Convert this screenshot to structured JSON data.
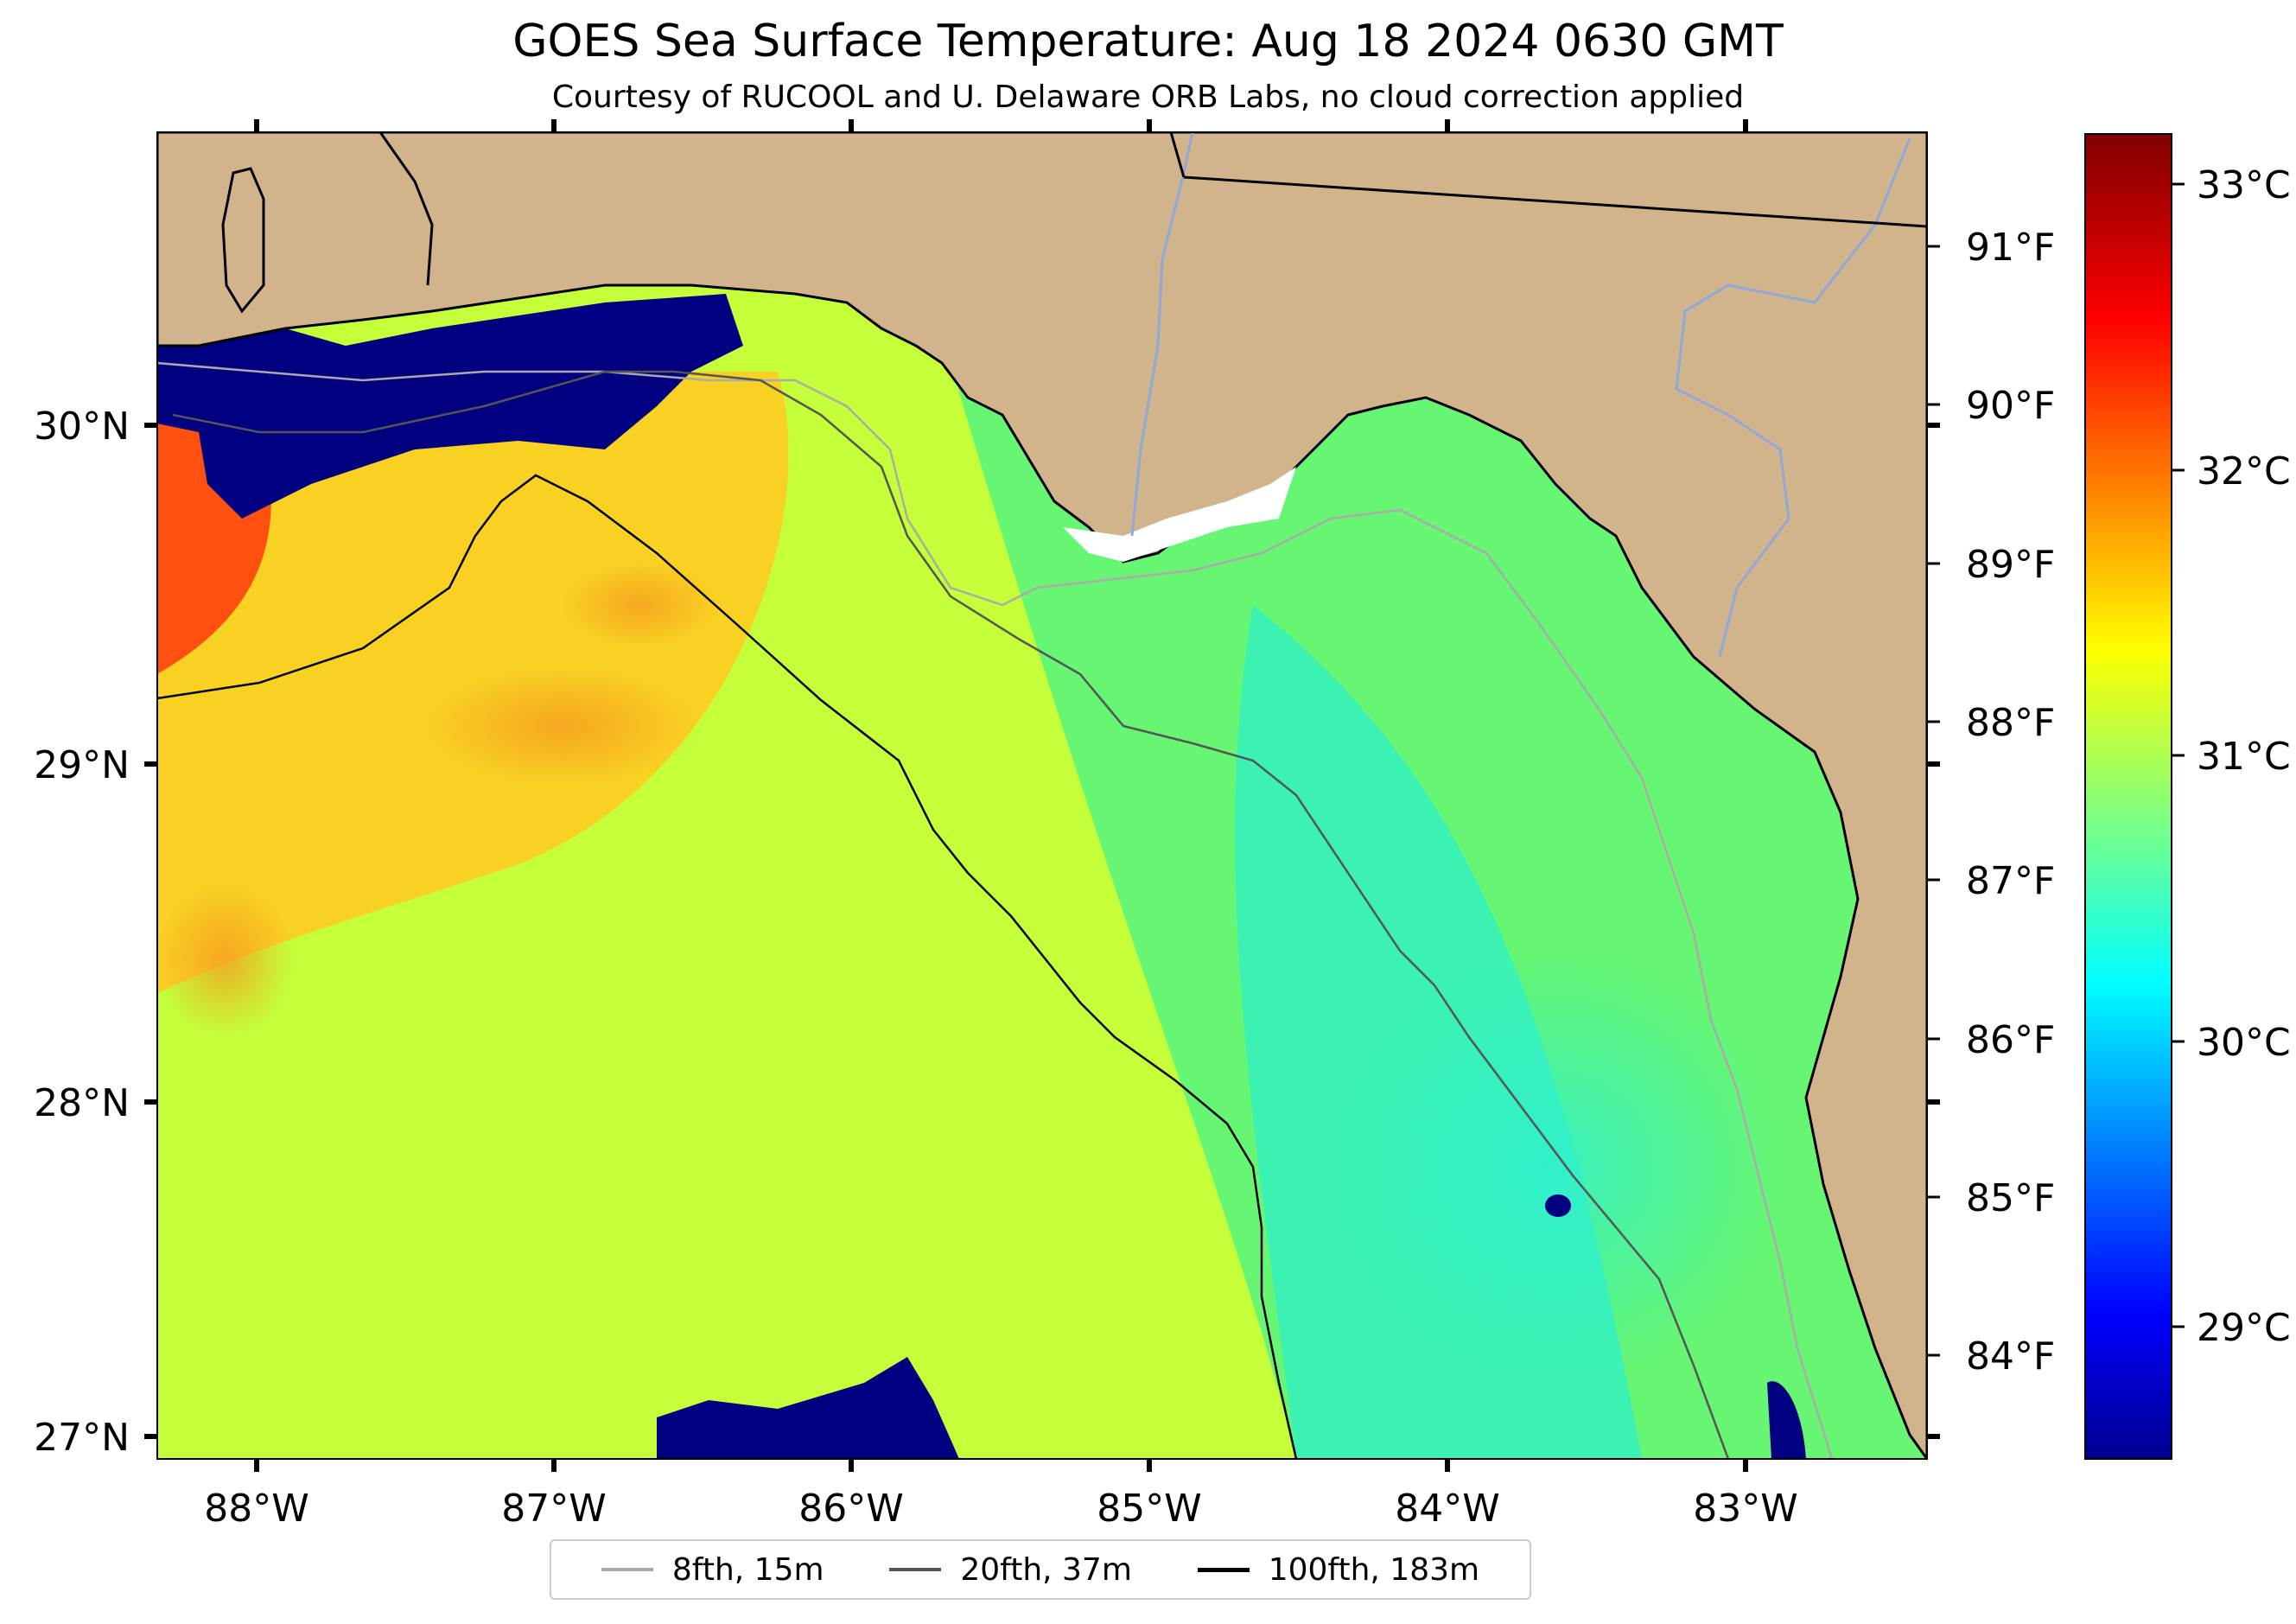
{
  "title": "GOES Sea Surface Temperature: Aug 18 2024 0630 GMT",
  "subtitle": "Courtesy of RUCOOL and U. Delaware ORB Labs, no cloud correction applied",
  "map": {
    "lon_ticks": [
      "88°W",
      "87°W",
      "86°W",
      "85°W",
      "84°W",
      "83°W"
    ],
    "lat_ticks": [
      "30°N",
      "29°N",
      "28°N",
      "27°N"
    ],
    "fahrenheit_ticks": [
      "91°F",
      "90°F",
      "89°F",
      "88°F",
      "87°F",
      "86°F",
      "85°F",
      "84°F"
    ],
    "land_color": "#d2b48c",
    "cloud_color": "#000080"
  },
  "colorbar": {
    "colormap": "jet",
    "celsius_ticks": [
      "33°C",
      "32°C",
      "31°C",
      "30°C",
      "29°C"
    ]
  },
  "legend": {
    "items": [
      {
        "label": "8fth, 15m",
        "color": "#aaaaaa"
      },
      {
        "label": "20fth, 37m",
        "color": "#555555"
      },
      {
        "label": "100fth, 183m",
        "color": "#000000"
      }
    ]
  }
}
